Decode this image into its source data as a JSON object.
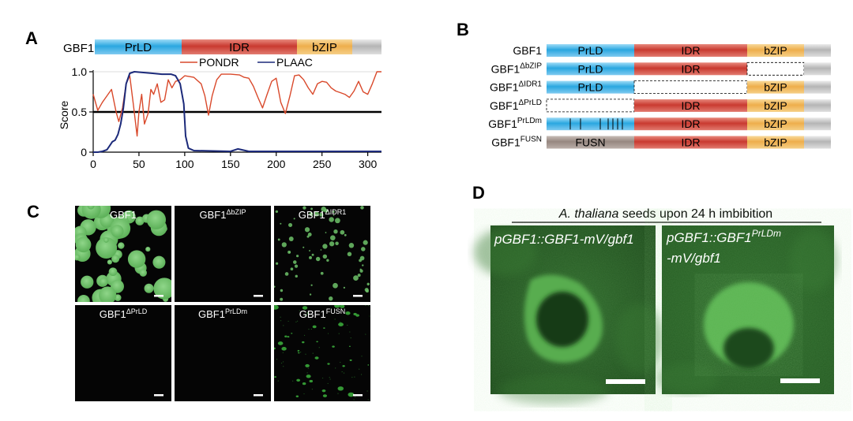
{
  "panels": {
    "A": {
      "letter": "A",
      "protein_label": "GBF1",
      "domains": [
        {
          "name": "PrLD",
          "color": "#4fb5e6"
        },
        {
          "name": "IDR",
          "color": "#cf3e36"
        },
        {
          "name": "bZIP",
          "color": "#f0b85c"
        },
        {
          "name": "",
          "color": "#c8c8c8"
        }
      ],
      "legend": [
        {
          "name": "PONDR",
          "color": "#d9492b"
        },
        {
          "name": "PLAAC",
          "color": "#1c2a7a"
        }
      ]
    },
    "B": {
      "letter": "B",
      "rows": [
        {
          "base": "GBF1",
          "sup": "",
          "segments": [
            "PrLD",
            "IDR",
            "bZIP"
          ],
          "missing": []
        },
        {
          "base": "GBF1",
          "sup": "ΔbZIP",
          "segments": [
            "PrLD",
            "IDR",
            ""
          ],
          "missing": [
            "bZIP"
          ]
        },
        {
          "base": "GBF1",
          "sup": "ΔIDR1",
          "segments": [
            "PrLD",
            "",
            "bZIP"
          ],
          "missing": [
            "IDR"
          ]
        },
        {
          "base": "GBF1",
          "sup": "ΔPrLD",
          "segments": [
            "",
            "IDR",
            "bZIP"
          ],
          "missing": [
            "PrLD"
          ]
        },
        {
          "base": "GBF1",
          "sup": "PrLDm",
          "segments": [
            "",
            "IDR",
            "bZIP"
          ],
          "missing": [],
          "mutated": true
        },
        {
          "base": "GBF1",
          "sup": "FUSN",
          "segments": [
            "FUSN",
            "IDR",
            "bZIP"
          ],
          "missing": []
        }
      ],
      "colors": {
        "PrLD": "#4fb5e6",
        "IDR": "#cf3e36",
        "bZIP": "#f0b85c",
        "tail": "#c8c8c8",
        "FUSN": "#a0928a"
      }
    },
    "C": {
      "letter": "C",
      "tiles": [
        {
          "base": "GBF1",
          "sup": "",
          "pattern": "large-droplets"
        },
        {
          "base": "GBF1",
          "sup": "ΔbZIP",
          "pattern": "empty"
        },
        {
          "base": "GBF1",
          "sup": "ΔIDR1",
          "pattern": "small-droplets"
        },
        {
          "base": "GBF1",
          "sup": "ΔPrLD",
          "pattern": "empty"
        },
        {
          "base": "GBF1",
          "sup": "PrLDm",
          "pattern": "empty"
        },
        {
          "base": "GBF1",
          "sup": "FUSN",
          "pattern": "aggregates"
        }
      ],
      "droplet_color": "#6ec36a"
    },
    "D": {
      "letter": "D",
      "header_italic": "A. thaliana",
      "header_rest": " seeds upon 24 h imbibition",
      "image1_label": "pGBF1::GBF1-mV/gbf1",
      "image2_label_line1": "pGBF1::GBF1",
      "image2_label_sup": "PrLDm",
      "image2_label_line2": "-mV/gbf1"
    }
  },
  "chart_data": {
    "type": "line",
    "title": "",
    "xlabel": "",
    "ylabel": "Score",
    "xlim": [
      0,
      315
    ],
    "ylim": [
      0,
      1.0
    ],
    "xticks": [
      0,
      50,
      100,
      150,
      200,
      250,
      300
    ],
    "yticks": [
      0,
      0.5,
      1.0
    ],
    "threshold": 0.5,
    "series": [
      {
        "name": "PONDR",
        "color": "#d9492b",
        "x": [
          0,
          5,
          10,
          15,
          20,
          25,
          28,
          32,
          36,
          40,
          44,
          48,
          50,
          53,
          56,
          60,
          63,
          66,
          70,
          74,
          78,
          82,
          86,
          90,
          95,
          100,
          110,
          118,
          122,
          126,
          130,
          135,
          140,
          150,
          160,
          165,
          170,
          175,
          180,
          185,
          190,
          195,
          200,
          205,
          210,
          215,
          220,
          225,
          230,
          235,
          240,
          245,
          250,
          255,
          260,
          265,
          270,
          275,
          280,
          285,
          290,
          295,
          300,
          305,
          310,
          315
        ],
        "y": [
          0.72,
          0.52,
          0.62,
          0.7,
          0.78,
          0.5,
          0.38,
          0.55,
          0.85,
          0.95,
          0.58,
          0.2,
          0.5,
          0.72,
          0.35,
          0.48,
          0.78,
          0.72,
          0.85,
          0.62,
          0.65,
          0.9,
          0.8,
          0.88,
          0.9,
          0.95,
          0.93,
          0.85,
          0.7,
          0.46,
          0.7,
          0.9,
          0.97,
          0.97,
          0.96,
          0.93,
          0.92,
          0.82,
          0.68,
          0.55,
          0.72,
          0.88,
          0.92,
          0.62,
          0.48,
          0.7,
          0.95,
          0.96,
          0.9,
          0.8,
          0.72,
          0.85,
          0.88,
          0.87,
          0.8,
          0.76,
          0.74,
          0.72,
          0.68,
          0.76,
          0.88,
          0.75,
          0.72,
          0.85,
          1.0,
          1.0
        ]
      },
      {
        "name": "PLAAC",
        "color": "#1c2a7a",
        "x": [
          0,
          5,
          10,
          15,
          18,
          21,
          24,
          27,
          30,
          33,
          36,
          40,
          45,
          55,
          65,
          75,
          85,
          90,
          95,
          99,
          101,
          104,
          110,
          150,
          158,
          162,
          170,
          200,
          250,
          300,
          315
        ],
        "y": [
          0.0,
          0.0,
          0.01,
          0.03,
          0.08,
          0.13,
          0.15,
          0.22,
          0.35,
          0.55,
          0.85,
          0.98,
          1.0,
          0.99,
          0.98,
          0.97,
          0.97,
          0.95,
          0.85,
          0.6,
          0.2,
          0.05,
          0.02,
          0.01,
          0.04,
          0.03,
          0.01,
          0.01,
          0.01,
          0.01,
          0.01
        ]
      }
    ]
  }
}
